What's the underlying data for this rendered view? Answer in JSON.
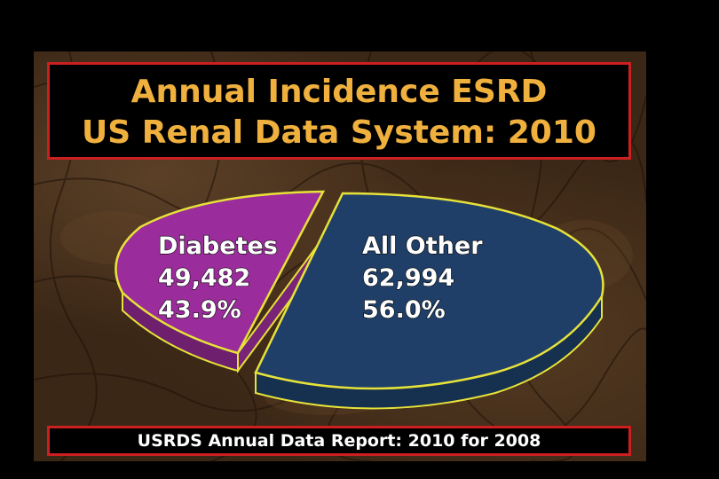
{
  "title": {
    "line1": "Annual Incidence ESRD",
    "line2": "US Renal Data System: 2010"
  },
  "source": "USRDS Annual Data Report: 2010 for 2008",
  "colors": {
    "diabetes": "#9b2c9b",
    "all_other": "#1f3f68",
    "outline": "#e6e23a",
    "title_text": "#f0b03e",
    "box_border": "#cc1f1f"
  },
  "chart_data": {
    "type": "pie",
    "title": "Annual Incidence ESRD US Renal Data System: 2010",
    "style": "3d-exploded",
    "slices": [
      {
        "name": "Diabetes",
        "value": 49482,
        "value_label": "49,482",
        "percent": 43.9,
        "percent_label": "43.9%"
      },
      {
        "name": "All Other",
        "value": 62994,
        "value_label": "62,994",
        "percent": 56.0,
        "percent_label": "56.0%"
      }
    ]
  }
}
